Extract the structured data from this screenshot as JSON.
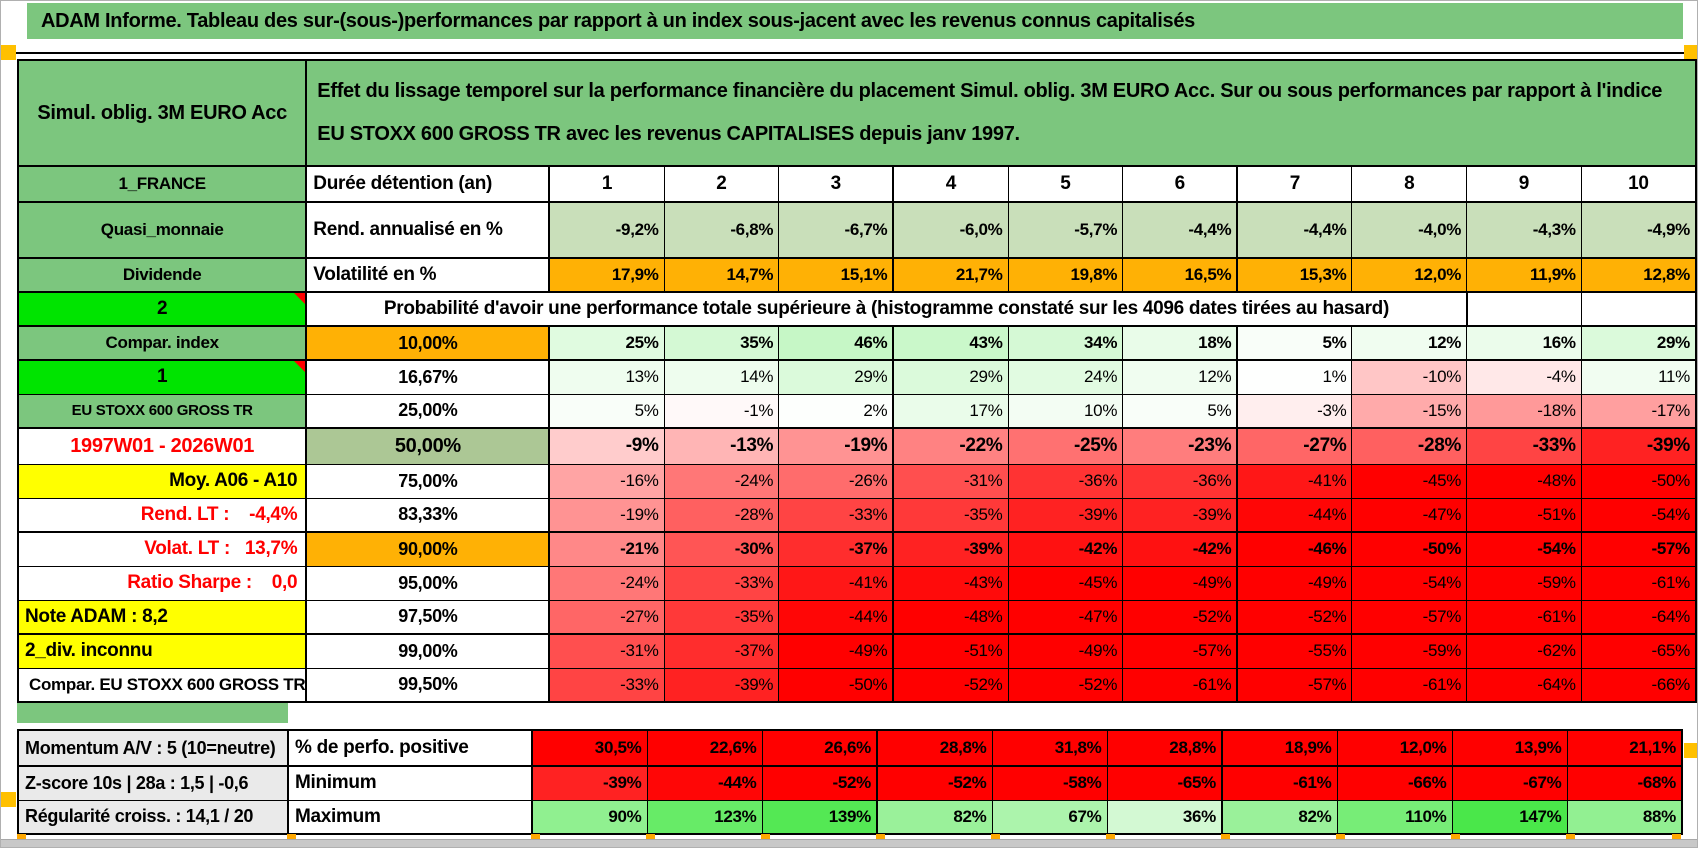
{
  "title": "ADAM Informe. Tableau des sur-(sous-)performances par rapport à un index sous-jacent avec les revenus connus capitalisés",
  "header": {
    "product": "Simul. oblig. 3M EURO Acc",
    "description": "Effet du lissage temporel sur la performance financière du placement Simul. oblig. 3M EURO Acc. Sur ou sous performances par rapport à l'indice EU STOXX 600 GROSS TR avec les revenus CAPITALISES depuis janv 1997."
  },
  "colors": {
    "header_green": "#7cc67e",
    "bright_green": "#00e400",
    "sage": "#c9dfba",
    "sage_dark": "#acc795",
    "orange": "#ffb105",
    "yellow": "#ffff00",
    "gray_label": "#eaeaea",
    "pure_red": "#ff0000",
    "red_text": "#ff0000",
    "marker_orange": "#ffc000"
  },
  "probability_note": "Probabilité d'avoir une performance totale supérieure à (histogramme constaté sur les 4096 dates tirées au hasard)",
  "main_table": {
    "rows": [
      {
        "kind": "colhead",
        "a": "1_FRANCE",
        "a_cls": "green",
        "b": "Durée détention (an)",
        "b_cls": "metric",
        "cells": [
          "1",
          "2",
          "3",
          "4",
          "5",
          "6",
          "7",
          "8",
          "9",
          "10"
        ]
      },
      {
        "a": "Quasi_monnaie",
        "a_cls": "green",
        "b": "Rend. annualisé en %",
        "b_cls": "metric",
        "fill": "sage",
        "bold": true,
        "cells": [
          "-9,2%",
          "-6,8%",
          "-6,7%",
          "-6,0%",
          "-5,7%",
          "-4,4%",
          "-4,4%",
          "-4,0%",
          "-4,3%",
          "-4,9%"
        ]
      },
      {
        "a": "Dividende",
        "a_cls": "green",
        "b": "Volatilité en %",
        "b_cls": "metric",
        "fill": "orange",
        "bold": true,
        "cells": [
          "17,9%",
          "14,7%",
          "15,1%",
          "21,7%",
          "19,8%",
          "16,5%",
          "15,3%",
          "12,0%",
          "11,9%",
          "12,8%"
        ]
      },
      {
        "kind": "span",
        "a": "2",
        "a_cls": "bright note"
      },
      {
        "a": "Compar. index",
        "a_cls": "green",
        "b": "10,00%",
        "b_cls": "pct orange-b",
        "fill": "scale",
        "bold": true,
        "cells": [
          "25%",
          "35%",
          "46%",
          "43%",
          "34%",
          "18%",
          "5%",
          "12%",
          "16%",
          "29%"
        ]
      },
      {
        "a": "1",
        "a_cls": "bright note",
        "b": "16,67%",
        "b_cls": "pct",
        "fill": "scale",
        "cells": [
          "13%",
          "14%",
          "29%",
          "29%",
          "24%",
          "12%",
          "1%",
          "-10%",
          "-4%",
          "11%"
        ]
      },
      {
        "a": "EU STOXX 600 GROSS TR",
        "a_cls": "green small",
        "b": "25,00%",
        "b_cls": "pct",
        "fill": "scale",
        "cells": [
          "5%",
          "-1%",
          "2%",
          "17%",
          "10%",
          "5%",
          "-3%",
          "-15%",
          "-18%",
          "-17%"
        ]
      },
      {
        "a": "1997W01 - 2026W01",
        "a_cls": "red-center",
        "b": "50,00%",
        "b_cls": "pct sage-b",
        "fill": "scale",
        "bold": true,
        "cells": [
          "-9%",
          "-13%",
          "-19%",
          "-22%",
          "-25%",
          "-23%",
          "-27%",
          "-28%",
          "-33%",
          "-39%"
        ]
      },
      {
        "a": "Moy. A06 - A10",
        "a_cls": "yellow right",
        "b": "75,00%",
        "b_cls": "pct",
        "fill": "scale",
        "cells": [
          "-16%",
          "-24%",
          "-26%",
          "-31%",
          "-36%",
          "-36%",
          "-41%",
          "-45%",
          "-48%",
          "-50%"
        ]
      },
      {
        "a": "Rend. LT :    -4,4%",
        "a_cls": "red-right",
        "b": "83,33%",
        "b_cls": "pct",
        "fill": "scale",
        "cells": [
          "-19%",
          "-28%",
          "-33%",
          "-35%",
          "-39%",
          "-39%",
          "-44%",
          "-47%",
          "-51%",
          "-54%"
        ]
      },
      {
        "a": "Volat. LT :   13,7%",
        "a_cls": "red-right",
        "b": "90,00%",
        "b_cls": "pct orange-b",
        "fill": "scale",
        "bold": true,
        "cells": [
          "-21%",
          "-30%",
          "-37%",
          "-39%",
          "-42%",
          "-42%",
          "-46%",
          "-50%",
          "-54%",
          "-57%"
        ]
      },
      {
        "a": "Ratio Sharpe :    0,0",
        "a_cls": "red-right",
        "b": "95,00%",
        "b_cls": "pct",
        "fill": "scale",
        "cells": [
          "-24%",
          "-33%",
          "-41%",
          "-43%",
          "-45%",
          "-49%",
          "-49%",
          "-54%",
          "-59%",
          "-61%"
        ]
      },
      {
        "a": "Note ADAM : 8,2",
        "a_cls": "yellow left",
        "b": "97,50%",
        "b_cls": "pct",
        "fill": "scale",
        "cells": [
          "-27%",
          "-35%",
          "-44%",
          "-48%",
          "-47%",
          "-52%",
          "-52%",
          "-57%",
          "-61%",
          "-64%"
        ]
      },
      {
        "a": "2_div. inconnu",
        "a_cls": "yellow left",
        "b": "99,00%",
        "b_cls": "pct",
        "fill": "scale",
        "cells": [
          "-31%",
          "-37%",
          "-49%",
          "-51%",
          "-49%",
          "-57%",
          "-55%",
          "-59%",
          "-62%",
          "-65%"
        ]
      },
      {
        "a": "Compar. EU STOXX 600 GROSS TR",
        "a_cls": "white",
        "b": "99,50%",
        "b_cls": "pct",
        "fill": "scale",
        "cells": [
          "-33%",
          "-39%",
          "-50%",
          "-52%",
          "-52%",
          "-61%",
          "-57%",
          "-61%",
          "-64%",
          "-66%"
        ]
      }
    ]
  },
  "bottom_table": {
    "rows": [
      {
        "a": "Momentum A/V : 5 (10=neutre)",
        "a_cls": "gray",
        "b": "% de perfo. positive",
        "b_cls": "metric",
        "fill": "red",
        "bold": true,
        "cells": [
          "30,5%",
          "22,6%",
          "26,6%",
          "28,8%",
          "31,8%",
          "28,8%",
          "18,9%",
          "12,0%",
          "13,9%",
          "21,1%"
        ]
      },
      {
        "a": "Z-score 10s | 28a : 1,5 | -0,6",
        "a_cls": "gray",
        "b": "Minimum",
        "b_cls": "metric",
        "fill": "scale",
        "bold": true,
        "cells": [
          "-39%",
          "-44%",
          "-52%",
          "-52%",
          "-58%",
          "-65%",
          "-61%",
          "-66%",
          "-67%",
          "-68%"
        ]
      },
      {
        "a": "Régularité croiss. : 14,1 / 20",
        "a_cls": "gray",
        "b": "Maximum",
        "b_cls": "metric",
        "fill": "scale",
        "bold": true,
        "cells": [
          "90%",
          "123%",
          "139%",
          "82%",
          "67%",
          "36%",
          "82%",
          "110%",
          "147%",
          "88%"
        ]
      }
    ]
  }
}
